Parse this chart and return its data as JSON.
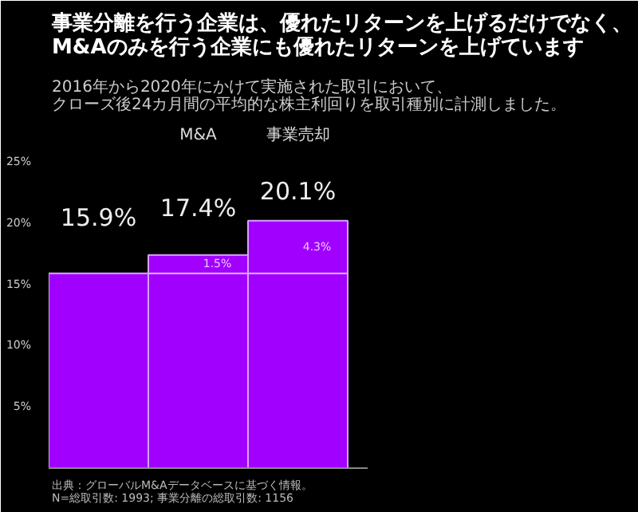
{
  "chart_data": {
    "type": "bar",
    "stacked": true,
    "title": "事業分離を行う企業は、優れたリターンを上げるだけでなく、\nM&Aのみを行う企業にも優れたリターンを上げています",
    "subtitle": "2016年から2020年にかけて実施された取引において、クローズ後24カ月間の平均的な株主利回りを取引種別に計測しました。",
    "categories": [
      null,
      "M&A",
      "事業売却"
    ],
    "series": [
      {
        "color": "#a100ff",
        "values": [
          15.9,
          15.9,
          15.9
        ]
      },
      {
        "color": "#a100ff",
        "values": [
          null,
          1.5,
          4.3
        ],
        "value_labels": [
          null,
          "1.5%",
          "4.3%"
        ]
      }
    ],
    "totals": [
      "15.9%",
      "17.4%",
      "20.1%"
    ],
    "ylim": [
      0,
      25
    ],
    "yticks": [
      {
        "value": 5,
        "label": "5%"
      },
      {
        "value": 10,
        "label": "10%"
      },
      {
        "value": 15,
        "label": "15%"
      },
      {
        "value": 20,
        "label": "20%"
      },
      {
        "value": 25,
        "label": "25%"
      }
    ],
    "grid": false,
    "annotations": [
      "出典：グローバルM&Aデータベースに基づく情報。\nN=総取引数: 1993; 事業分離の総取引数: 1156"
    ]
  }
}
